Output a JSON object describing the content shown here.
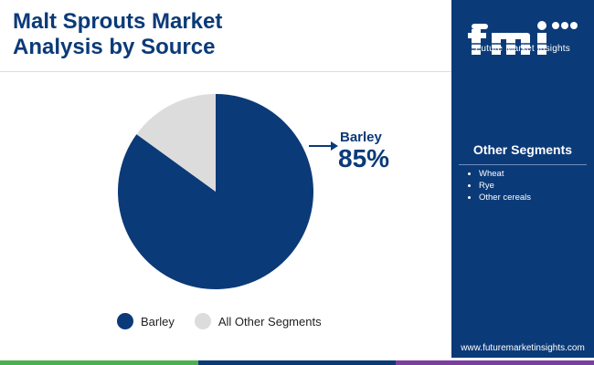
{
  "header": {
    "title_line1": "Malt Sprouts Market",
    "title_line2": "Analysis by Source"
  },
  "brand": {
    "logo_text": "Future Market Insights",
    "logo_icon": "fmi-logo",
    "url": "www.futuremarketinsights.com"
  },
  "segments": {
    "title": "Other Segments",
    "items": [
      "Wheat",
      "Rye",
      "Other cereals"
    ]
  },
  "colors": {
    "primary": "#0b3a78",
    "secondary": "#dcdcdc",
    "bar": [
      "#4caf50",
      "#0b3a78",
      "#7b3fa0"
    ]
  },
  "callout": {
    "label": "Barley",
    "value": "85%"
  },
  "chart_data": {
    "type": "pie",
    "title": "Malt Sprouts Market Analysis by Source",
    "categories": [
      "Barley",
      "All Other Segments"
    ],
    "values": [
      85,
      15
    ],
    "colors": [
      "#0b3a78",
      "#dcdcdc"
    ],
    "legend_position": "bottom"
  },
  "legend": {
    "items": [
      {
        "label": "Barley",
        "color": "#0b3a78"
      },
      {
        "label": "All Other Segments",
        "color": "#dcdcdc"
      }
    ]
  }
}
